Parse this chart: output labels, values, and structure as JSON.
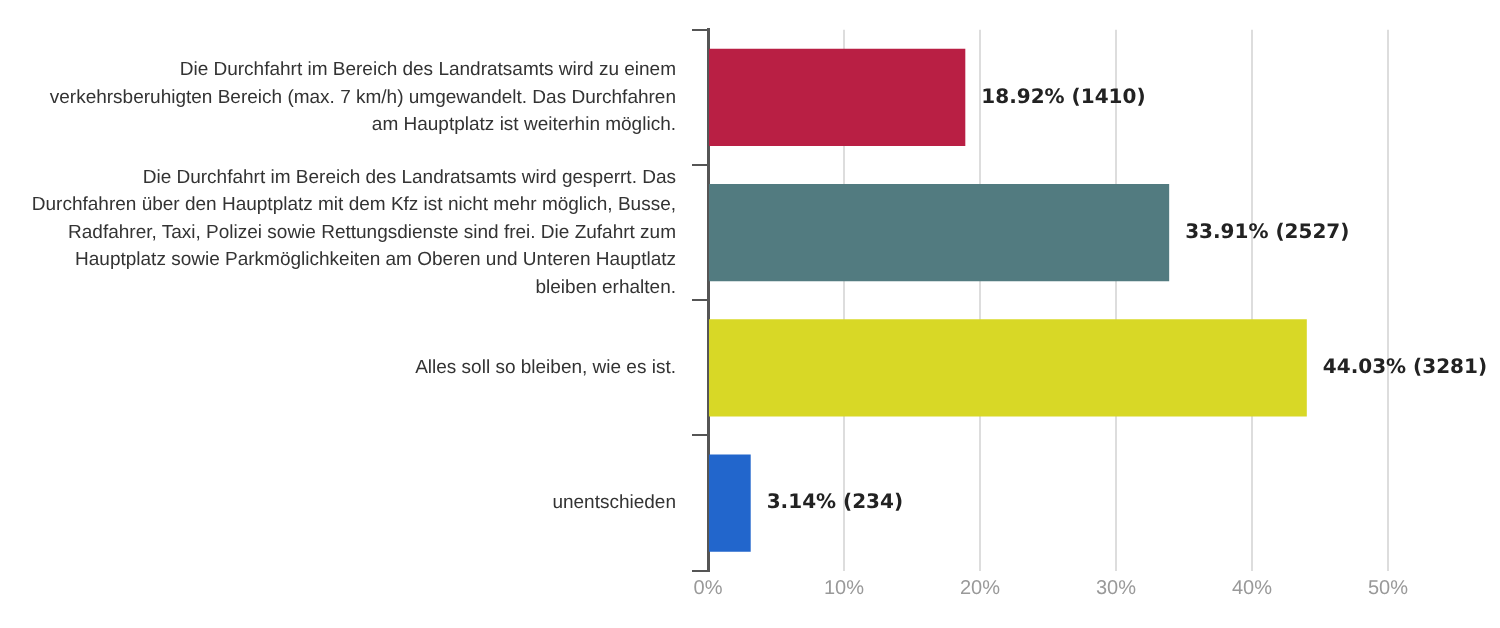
{
  "chart_data": {
    "type": "bar",
    "orientation": "horizontal",
    "categories": [
      "Die Durchfahrt im Bereich des Landratsamts wird zu einem\nverkehrsberuhigten Bereich (max. 7 km/h) umgewandelt. Das Durchfahren\nam Hauptplatz ist weiterhin möglich.",
      "Die Durchfahrt im Bereich des Landratsamts wird gesperrt. Das\nDurchfahren über den Hauptplatz mit dem Kfz ist nicht mehr möglich, Busse,\nRadfahrer, Taxi, Polizei sowie Rettungsdienste sind frei. Die Zufahrt zum\nHauptplatz sowie Parkmöglichkeiten am Oberen und Unteren Hauptlatz\nbleiben erhalten.",
      "Alles soll so bleiben, wie es ist.",
      "unentschieden"
    ],
    "values": [
      18.92,
      33.91,
      44.03,
      3.14
    ],
    "colors": [
      "#b91f44",
      "#527b80",
      "#d8d826",
      "#2266cc"
    ],
    "value_labels": [
      "18.92% (1410)",
      "33.91% (2527)",
      "44.03% (3281)",
      "3.14% (234)"
    ],
    "xlim": [
      0,
      50
    ],
    "xticks": [
      {
        "value": 0,
        "label": "0%"
      },
      {
        "value": 10,
        "label": "10%"
      },
      {
        "value": 20,
        "label": "20%"
      },
      {
        "value": 30,
        "label": "30%"
      },
      {
        "value": 40,
        "label": "40%"
      },
      {
        "value": 50,
        "label": "50%"
      }
    ],
    "grid": "x",
    "legend": false
  }
}
